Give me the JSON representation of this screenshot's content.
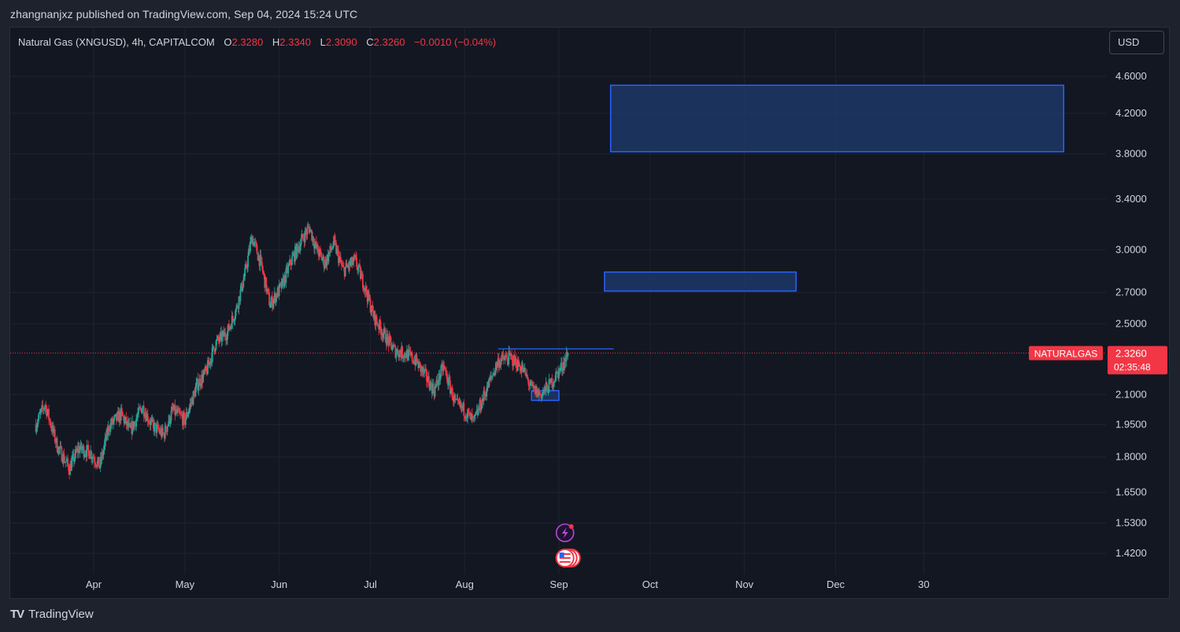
{
  "header": {
    "credit": "zhangnanjxz published on TradingView.com, Sep 04, 2024 15:24 UTC"
  },
  "legend": {
    "symbol": "Natural Gas (XNGUSD), 4h, CAPITALCOM",
    "open_label": "O",
    "open": "2.3280",
    "high_label": "H",
    "high": "2.3340",
    "low_label": "L",
    "low": "2.3090",
    "close_label": "C",
    "close": "2.3260",
    "change": "−0.0010 (−0.04%)"
  },
  "currency_button": "USD",
  "price_tag": {
    "symbol": "NATURALGAS",
    "price": "2.3260",
    "countdown": "02:35:48"
  },
  "brand": {
    "name": "TradingView",
    "logo_icon": "tradingview-logo-icon"
  },
  "colors": {
    "background": "#131722",
    "up": "#26a69a",
    "down": "#f23645",
    "zone_border": "#2962ff",
    "zone_fill": "#1e3a6b"
  },
  "chart_data": {
    "type": "candlestick",
    "scale": "log",
    "y_ticks": [
      4.6,
      4.2,
      3.8,
      3.4,
      3.0,
      2.7,
      2.5,
      2.1,
      1.95,
      1.8,
      1.65,
      1.53,
      1.42
    ],
    "y_tick_labels": [
      "4.6000",
      "4.2000",
      "3.8000",
      "3.4000",
      "3.0000",
      "2.7000",
      "2.5000",
      "2.1000",
      "1.9500",
      "1.8000",
      "1.6500",
      "1.5300",
      "1.4200"
    ],
    "x_ticks": [
      "Apr",
      "May",
      "Jun",
      "Jul",
      "Aug",
      "Sep",
      "Oct",
      "Nov",
      "Dec",
      "30"
    ],
    "x_range": [
      "2024-03-13",
      "2025-01-30"
    ],
    "last_price": 2.326,
    "price_path": [
      {
        "date": "2024-03-13",
        "price": 1.95
      },
      {
        "date": "2024-03-16",
        "price": 2.05
      },
      {
        "date": "2024-03-20",
        "price": 1.85
      },
      {
        "date": "2024-03-24",
        "price": 1.75
      },
      {
        "date": "2024-03-27",
        "price": 1.84
      },
      {
        "date": "2024-03-31",
        "price": 1.82
      },
      {
        "date": "2024-04-03",
        "price": 1.76
      },
      {
        "date": "2024-04-06",
        "price": 1.94
      },
      {
        "date": "2024-04-10",
        "price": 2.0
      },
      {
        "date": "2024-04-13",
        "price": 1.92
      },
      {
        "date": "2024-04-17",
        "price": 2.04
      },
      {
        "date": "2024-04-20",
        "price": 1.95
      },
      {
        "date": "2024-04-24",
        "price": 1.9
      },
      {
        "date": "2024-04-27",
        "price": 2.02
      },
      {
        "date": "2024-05-01",
        "price": 1.97
      },
      {
        "date": "2024-05-05",
        "price": 2.15
      },
      {
        "date": "2024-05-08",
        "price": 2.22
      },
      {
        "date": "2024-05-11",
        "price": 2.38
      },
      {
        "date": "2024-05-15",
        "price": 2.45
      },
      {
        "date": "2024-05-18",
        "price": 2.6
      },
      {
        "date": "2024-05-21",
        "price": 2.85
      },
      {
        "date": "2024-05-23",
        "price": 3.1
      },
      {
        "date": "2024-05-26",
        "price": 2.9
      },
      {
        "date": "2024-05-29",
        "price": 2.62
      },
      {
        "date": "2024-06-02",
        "price": 2.75
      },
      {
        "date": "2024-06-05",
        "price": 2.92
      },
      {
        "date": "2024-06-09",
        "price": 3.1
      },
      {
        "date": "2024-06-11",
        "price": 3.17
      },
      {
        "date": "2024-06-13",
        "price": 3.02
      },
      {
        "date": "2024-06-16",
        "price": 2.9
      },
      {
        "date": "2024-06-19",
        "price": 3.05
      },
      {
        "date": "2024-06-22",
        "price": 2.85
      },
      {
        "date": "2024-06-26",
        "price": 2.92
      },
      {
        "date": "2024-06-29",
        "price": 2.75
      },
      {
        "date": "2024-07-02",
        "price": 2.55
      },
      {
        "date": "2024-07-06",
        "price": 2.42
      },
      {
        "date": "2024-07-09",
        "price": 2.34
      },
      {
        "date": "2024-07-13",
        "price": 2.32
      },
      {
        "date": "2024-07-16",
        "price": 2.28
      },
      {
        "date": "2024-07-19",
        "price": 2.2
      },
      {
        "date": "2024-07-22",
        "price": 2.12
      },
      {
        "date": "2024-07-25",
        "price": 2.25
      },
      {
        "date": "2024-07-29",
        "price": 2.05
      },
      {
        "date": "2024-08-01",
        "price": 2.02
      },
      {
        "date": "2024-08-04",
        "price": 1.96
      },
      {
        "date": "2024-08-08",
        "price": 2.12
      },
      {
        "date": "2024-08-12",
        "price": 2.28
      },
      {
        "date": "2024-08-16",
        "price": 2.3
      },
      {
        "date": "2024-08-20",
        "price": 2.24
      },
      {
        "date": "2024-08-23",
        "price": 2.13
      },
      {
        "date": "2024-08-26",
        "price": 2.1
      },
      {
        "date": "2024-08-29",
        "price": 2.15
      },
      {
        "date": "2024-09-02",
        "price": 2.25
      },
      {
        "date": "2024-09-04",
        "price": 2.326
      }
    ],
    "horizontal_lines": [
      {
        "price": 2.35,
        "from": "2024-08-12",
        "to": "2024-09-19"
      }
    ],
    "zones": [
      {
        "from": "2024-09-18",
        "to": "2025-02-14",
        "top": 4.5,
        "bottom": 3.82
      },
      {
        "from": "2024-09-16",
        "to": "2024-11-18",
        "top": 2.84,
        "bottom": 2.71
      },
      {
        "from": "2024-08-23",
        "to": "2024-09-01",
        "top": 2.12,
        "bottom": 2.07
      }
    ],
    "event_icons": [
      {
        "date": "2024-09-03",
        "icon": "lightning-event-icon"
      },
      {
        "date": "2024-09-03",
        "icon": "us-flag-event-icon"
      }
    ]
  }
}
